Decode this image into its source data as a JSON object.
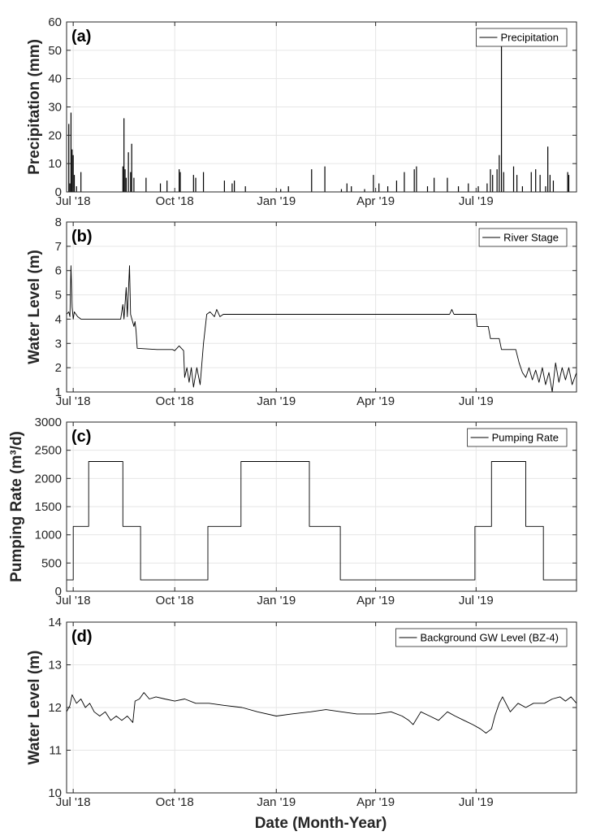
{
  "figure": {
    "xlabel": "Date (Month-Year)",
    "x_range": [
      "2018-06-25",
      "2019-09-30"
    ],
    "x_ticks": [
      {
        "date": "2018-07-01",
        "label": "Jul '18"
      },
      {
        "date": "2018-10-01",
        "label": "Oct '18"
      },
      {
        "date": "2019-01-01",
        "label": "Jan '19"
      },
      {
        "date": "2019-04-01",
        "label": "Apr '19"
      },
      {
        "date": "2019-07-01",
        "label": "Jul '19"
      }
    ],
    "grid": true,
    "line_color": "#000000",
    "grid_color": "#e6e6e6",
    "axes_color": "#262626"
  },
  "chart_data": [
    {
      "panel": "(a)",
      "type": "bar",
      "ylabel": "Precipitation (mm)",
      "ylim": [
        0,
        60
      ],
      "yticks": [
        0,
        10,
        20,
        30,
        40,
        50,
        60
      ],
      "legend": "Precipitation",
      "legend_position": "top-right",
      "points": [
        [
          "2018-06-27",
          24
        ],
        [
          "2018-06-28",
          3
        ],
        [
          "2018-06-29",
          28
        ],
        [
          "2018-06-30",
          15
        ],
        [
          "2018-07-01",
          13
        ],
        [
          "2018-07-02",
          6
        ],
        [
          "2018-07-04",
          2
        ],
        [
          "2018-07-08",
          7
        ],
        [
          "2018-08-15",
          9
        ],
        [
          "2018-08-16",
          26
        ],
        [
          "2018-08-17",
          8
        ],
        [
          "2018-08-18",
          5
        ],
        [
          "2018-08-20",
          14
        ],
        [
          "2018-08-22",
          7
        ],
        [
          "2018-08-23",
          17
        ],
        [
          "2018-08-25",
          5
        ],
        [
          "2018-09-05",
          5
        ],
        [
          "2018-09-18",
          3
        ],
        [
          "2018-09-24",
          4
        ],
        [
          "2018-10-05",
          8
        ],
        [
          "2018-10-06",
          7
        ],
        [
          "2018-10-18",
          6
        ],
        [
          "2018-10-20",
          5
        ],
        [
          "2018-10-27",
          7
        ],
        [
          "2018-11-15",
          4
        ],
        [
          "2018-11-22",
          3
        ],
        [
          "2018-11-24",
          4
        ],
        [
          "2018-12-04",
          2
        ],
        [
          "2019-01-05",
          1
        ],
        [
          "2019-01-12",
          2
        ],
        [
          "2019-02-02",
          8
        ],
        [
          "2019-02-14",
          9
        ],
        [
          "2019-03-01",
          1
        ],
        [
          "2019-03-06",
          3
        ],
        [
          "2019-03-10",
          2
        ],
        [
          "2019-03-22",
          1
        ],
        [
          "2019-03-30",
          6
        ],
        [
          "2019-04-04",
          3
        ],
        [
          "2019-04-12",
          2
        ],
        [
          "2019-04-20",
          4
        ],
        [
          "2019-04-27",
          7
        ],
        [
          "2019-05-06",
          8
        ],
        [
          "2019-05-08",
          9
        ],
        [
          "2019-05-18",
          2
        ],
        [
          "2019-05-24",
          5
        ],
        [
          "2019-06-05",
          5
        ],
        [
          "2019-06-15",
          2
        ],
        [
          "2019-06-24",
          3
        ],
        [
          "2019-07-03",
          2
        ],
        [
          "2019-07-11",
          3
        ],
        [
          "2019-07-14",
          8
        ],
        [
          "2019-07-16",
          6
        ],
        [
          "2019-07-20",
          8
        ],
        [
          "2019-07-22",
          13
        ],
        [
          "2019-07-24",
          52
        ],
        [
          "2019-07-26",
          7
        ],
        [
          "2019-08-04",
          9
        ],
        [
          "2019-08-07",
          6
        ],
        [
          "2019-08-12",
          2
        ],
        [
          "2019-08-20",
          7
        ],
        [
          "2019-08-24",
          8
        ],
        [
          "2019-08-28",
          6
        ],
        [
          "2019-09-02",
          2
        ],
        [
          "2019-09-04",
          16
        ],
        [
          "2019-09-06",
          6
        ],
        [
          "2019-09-09",
          4
        ],
        [
          "2019-09-22",
          7
        ],
        [
          "2019-09-23",
          6
        ]
      ]
    },
    {
      "panel": "(b)",
      "type": "line",
      "ylabel": "Water Level (m)",
      "ylim": [
        1,
        8
      ],
      "yticks": [
        1,
        2,
        3,
        4,
        5,
        6,
        7,
        8
      ],
      "legend": "River Stage",
      "legend_position": "top-right",
      "points": [
        [
          "2018-06-25",
          4.2
        ],
        [
          "2018-06-27",
          4.3
        ],
        [
          "2018-06-28",
          4.1
        ],
        [
          "2018-06-29",
          6.2
        ],
        [
          "2018-06-30",
          4.5
        ],
        [
          "2018-07-01",
          4.0
        ],
        [
          "2018-07-02",
          4.3
        ],
        [
          "2018-07-05",
          4.1
        ],
        [
          "2018-07-08",
          4.0
        ],
        [
          "2018-08-13",
          4.0
        ],
        [
          "2018-08-15",
          4.6
        ],
        [
          "2018-08-16",
          4.0
        ],
        [
          "2018-08-18",
          5.3
        ],
        [
          "2018-08-19",
          4.1
        ],
        [
          "2018-08-21",
          6.2
        ],
        [
          "2018-08-22",
          4.2
        ],
        [
          "2018-08-25",
          3.7
        ],
        [
          "2018-08-26",
          3.9
        ],
        [
          "2018-08-27",
          3.5
        ],
        [
          "2018-08-28",
          2.8
        ],
        [
          "2018-09-15",
          2.75
        ],
        [
          "2018-09-29",
          2.75
        ],
        [
          "2018-10-01",
          2.7
        ],
        [
          "2018-10-05",
          2.9
        ],
        [
          "2018-10-09",
          2.7
        ],
        [
          "2018-10-10",
          1.6
        ],
        [
          "2018-10-12",
          2.0
        ],
        [
          "2018-10-14",
          1.4
        ],
        [
          "2018-10-16",
          2.0
        ],
        [
          "2018-10-18",
          1.2
        ],
        [
          "2018-10-21",
          2.0
        ],
        [
          "2018-10-24",
          1.3
        ],
        [
          "2018-10-27",
          3.0
        ],
        [
          "2018-10-30",
          4.2
        ],
        [
          "2018-11-02",
          4.3
        ],
        [
          "2018-11-06",
          4.1
        ],
        [
          "2018-11-08",
          4.4
        ],
        [
          "2018-11-11",
          4.1
        ],
        [
          "2018-11-14",
          4.2
        ],
        [
          "2019-06-07",
          4.2
        ],
        [
          "2019-06-09",
          4.4
        ],
        [
          "2019-06-11",
          4.2
        ],
        [
          "2019-07-01",
          4.2
        ],
        [
          "2019-07-02",
          3.7
        ],
        [
          "2019-07-12",
          3.7
        ],
        [
          "2019-07-14",
          3.2
        ],
        [
          "2019-07-22",
          3.2
        ],
        [
          "2019-07-24",
          2.75
        ],
        [
          "2019-08-06",
          2.75
        ],
        [
          "2019-08-09",
          2.2
        ],
        [
          "2019-08-12",
          1.8
        ],
        [
          "2019-08-15",
          1.6
        ],
        [
          "2019-08-18",
          2.0
        ],
        [
          "2019-08-21",
          1.5
        ],
        [
          "2019-08-24",
          1.9
        ],
        [
          "2019-08-27",
          1.4
        ],
        [
          "2019-08-30",
          2.0
        ],
        [
          "2019-09-02",
          1.3
        ],
        [
          "2019-09-05",
          1.8
        ],
        [
          "2019-09-08",
          1.0
        ],
        [
          "2019-09-11",
          2.2
        ],
        [
          "2019-09-14",
          1.4
        ],
        [
          "2019-09-17",
          2.0
        ],
        [
          "2019-09-20",
          1.5
        ],
        [
          "2019-09-23",
          2.0
        ],
        [
          "2019-09-26",
          1.3
        ],
        [
          "2019-09-30",
          1.8
        ]
      ]
    },
    {
      "panel": "(c)",
      "type": "line",
      "ylabel": "Pumping Rate (m³/d)",
      "ylim": [
        0,
        3000
      ],
      "yticks": [
        0,
        500,
        1000,
        1500,
        2000,
        2500,
        3000
      ],
      "legend": "Pumping Rate",
      "legend_position": "top-right",
      "points": [
        [
          "2018-06-25",
          200
        ],
        [
          "2018-07-01",
          200
        ],
        [
          "2018-07-01",
          1150
        ],
        [
          "2018-07-15",
          1150
        ],
        [
          "2018-07-15",
          2300
        ],
        [
          "2018-08-15",
          2300
        ],
        [
          "2018-08-15",
          1150
        ],
        [
          "2018-08-31",
          1150
        ],
        [
          "2018-08-31",
          200
        ],
        [
          "2018-10-31",
          200
        ],
        [
          "2018-10-31",
          1150
        ],
        [
          "2018-11-30",
          1150
        ],
        [
          "2018-11-30",
          2300
        ],
        [
          "2019-01-31",
          2300
        ],
        [
          "2019-01-31",
          1150
        ],
        [
          "2019-02-28",
          1150
        ],
        [
          "2019-02-28",
          200
        ],
        [
          "2019-06-30",
          200
        ],
        [
          "2019-06-30",
          1150
        ],
        [
          "2019-07-15",
          1150
        ],
        [
          "2019-07-15",
          2300
        ],
        [
          "2019-08-15",
          2300
        ],
        [
          "2019-08-15",
          1150
        ],
        [
          "2019-08-31",
          1150
        ],
        [
          "2019-08-31",
          200
        ],
        [
          "2019-09-30",
          200
        ]
      ]
    },
    {
      "panel": "(d)",
      "type": "line",
      "ylabel": "Water Level (m)",
      "ylim": [
        10,
        14
      ],
      "yticks": [
        10,
        11,
        12,
        13,
        14
      ],
      "legend": "Background GW Level (BZ-4)",
      "legend_position": "top-right",
      "points": [
        [
          "2018-06-25",
          11.9
        ],
        [
          "2018-06-28",
          12.05
        ],
        [
          "2018-06-30",
          12.3
        ],
        [
          "2018-07-04",
          12.1
        ],
        [
          "2018-07-08",
          12.2
        ],
        [
          "2018-07-12",
          12.0
        ],
        [
          "2018-07-16",
          12.1
        ],
        [
          "2018-07-20",
          11.9
        ],
        [
          "2018-07-25",
          11.8
        ],
        [
          "2018-07-30",
          11.9
        ],
        [
          "2018-08-04",
          11.7
        ],
        [
          "2018-08-09",
          11.8
        ],
        [
          "2018-08-14",
          11.7
        ],
        [
          "2018-08-19",
          11.8
        ],
        [
          "2018-08-24",
          11.65
        ],
        [
          "2018-08-26",
          12.15
        ],
        [
          "2018-08-30",
          12.2
        ],
        [
          "2018-09-03",
          12.35
        ],
        [
          "2018-09-08",
          12.2
        ],
        [
          "2018-09-14",
          12.25
        ],
        [
          "2018-09-22",
          12.2
        ],
        [
          "2018-10-01",
          12.15
        ],
        [
          "2018-10-10",
          12.2
        ],
        [
          "2018-10-20",
          12.1
        ],
        [
          "2018-11-01",
          12.1
        ],
        [
          "2018-11-15",
          12.05
        ],
        [
          "2018-12-01",
          12.0
        ],
        [
          "2018-12-15",
          11.9
        ],
        [
          "2019-01-01",
          11.8
        ],
        [
          "2019-01-15",
          11.85
        ],
        [
          "2019-02-01",
          11.9
        ],
        [
          "2019-02-15",
          11.95
        ],
        [
          "2019-03-01",
          11.9
        ],
        [
          "2019-03-15",
          11.85
        ],
        [
          "2019-04-01",
          11.85
        ],
        [
          "2019-04-15",
          11.9
        ],
        [
          "2019-04-25",
          11.8
        ],
        [
          "2019-05-01",
          11.7
        ],
        [
          "2019-05-05",
          11.6
        ],
        [
          "2019-05-12",
          11.9
        ],
        [
          "2019-05-20",
          11.8
        ],
        [
          "2019-05-28",
          11.7
        ],
        [
          "2019-06-05",
          11.9
        ],
        [
          "2019-06-12",
          11.8
        ],
        [
          "2019-06-20",
          11.7
        ],
        [
          "2019-06-28",
          11.6
        ],
        [
          "2019-07-05",
          11.5
        ],
        [
          "2019-07-10",
          11.4
        ],
        [
          "2019-07-15",
          11.5
        ],
        [
          "2019-07-18",
          11.8
        ],
        [
          "2019-07-22",
          12.1
        ],
        [
          "2019-07-25",
          12.25
        ],
        [
          "2019-08-01",
          11.9
        ],
        [
          "2019-08-08",
          12.1
        ],
        [
          "2019-08-15",
          12.0
        ],
        [
          "2019-08-22",
          12.1
        ],
        [
          "2019-09-01",
          12.1
        ],
        [
          "2019-09-08",
          12.2
        ],
        [
          "2019-09-15",
          12.25
        ],
        [
          "2019-09-20",
          12.15
        ],
        [
          "2019-09-25",
          12.25
        ],
        [
          "2019-09-30",
          12.1
        ]
      ]
    }
  ]
}
